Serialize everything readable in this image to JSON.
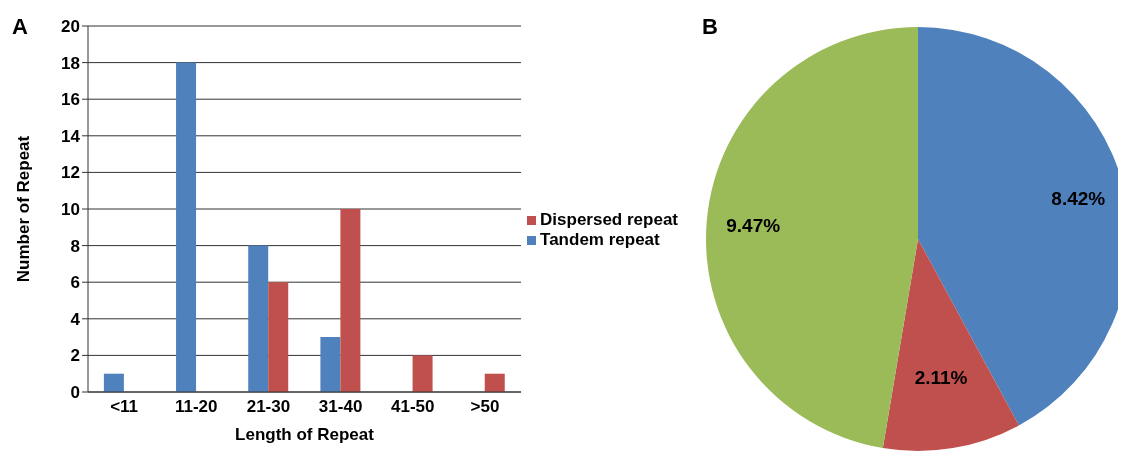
{
  "chart_data": [
    {
      "type": "bar",
      "title": "A",
      "xlabel": "Length of Repeat",
      "ylabel": "Number of Repeat",
      "categories": [
        "<11",
        "11-20",
        "21-30",
        "31-40",
        "41-50",
        ">50"
      ],
      "series": [
        {
          "name": "Tandem repeat",
          "color": "#4f81bd",
          "values": [
            1,
            18,
            8,
            3,
            0,
            0
          ]
        },
        {
          "name": "Dispersed repeat",
          "color": "#c0504d",
          "values": [
            0,
            0,
            6,
            10,
            2,
            1
          ]
        }
      ],
      "ylim": [
        0,
        20
      ],
      "yticks": [
        0,
        2,
        4,
        6,
        8,
        10,
        12,
        14,
        16,
        18,
        20
      ],
      "grid": "y",
      "legend": "right"
    },
    {
      "type": "pie",
      "title": "B",
      "categories": [
        null,
        null,
        null
      ],
      "values": [
        8.42,
        2.11,
        9.47
      ],
      "colors": [
        "#4f81bd",
        "#c0504d",
        "#9bbb59"
      ],
      "value_labels": [
        "8.42%",
        "2.11%",
        "9.47%"
      ]
    }
  ]
}
